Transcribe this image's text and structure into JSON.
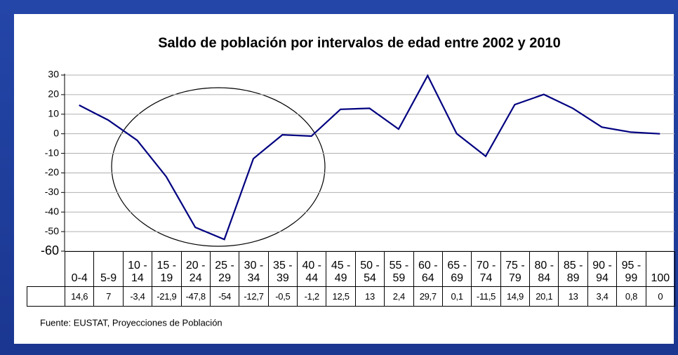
{
  "chart_data": {
    "type": "line",
    "title": "Saldo de población por intervalos de edad entre 2002 y 2010",
    "source": "Fuente: EUSTAT, Proyecciones de Población",
    "categories": [
      "0-4",
      "5-9",
      "10 - 14",
      "15 - 19",
      "20 - 24",
      "25 - 29",
      "30 - 34",
      "35 - 39",
      "40 - 44",
      "45 - 49",
      "50 - 54",
      "55 - 59",
      "60 - 64",
      "65 - 69",
      "70 - 74",
      "75 - 79",
      "80 - 84",
      "85 - 89",
      "90 - 94",
      "95 - 99",
      "100"
    ],
    "series": [
      {
        "color": "#000080",
        "values": [
          14.6,
          7,
          -3.4,
          -21.9,
          -47.8,
          -54,
          -12.7,
          -0.5,
          -1.2,
          12.5,
          13,
          2.4,
          29.7,
          0.1,
          -11.5,
          14.9,
          20.1,
          13,
          3.4,
          0.8,
          0
        ],
        "value_labels": [
          "14,6",
          "7",
          "-3,4",
          "-21,9",
          "-47,8",
          "-54",
          "-12,7",
          "-0,5",
          "-1,2",
          "12,5",
          "13",
          "2,4",
          "29,7",
          "0,1",
          "-11,5",
          "14,9",
          "20,1",
          "13",
          "3,4",
          "0,8",
          "0"
        ]
      }
    ],
    "ylim": [
      -60,
      30
    ],
    "yticks": [
      30,
      20,
      10,
      0,
      -10,
      -20,
      -30,
      -40,
      -50,
      -60
    ],
    "grid": true
  }
}
